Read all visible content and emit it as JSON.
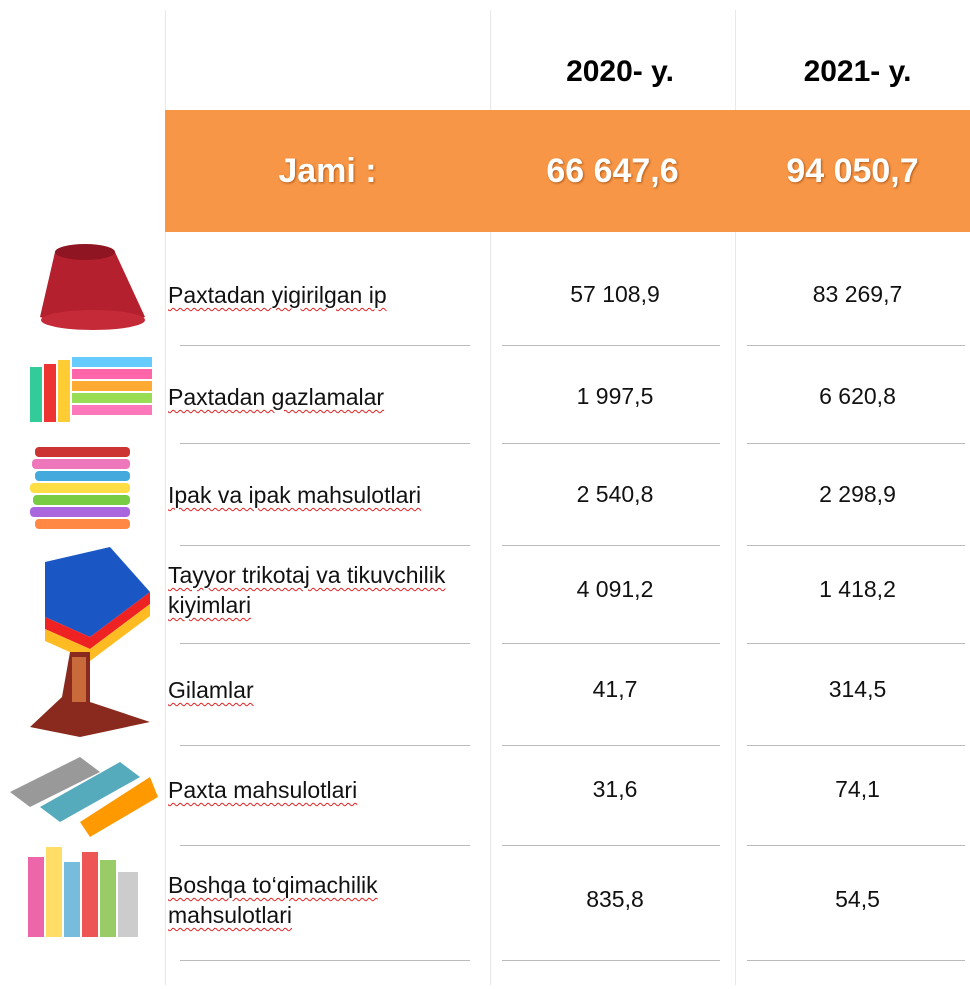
{
  "header": {
    "columns": [
      "2020- y.",
      "2021- y."
    ]
  },
  "total": {
    "label": "Jami :",
    "values": [
      "66 647,6",
      "94 050,7"
    ]
  },
  "rows": [
    {
      "label": "Paxtadan yigirilgan ip",
      "values": [
        "57 108,9",
        "83 269,7"
      ]
    },
    {
      "label": "Paxtadan gazlamalar",
      "values": [
        "1 997,5",
        "6 620,8"
      ]
    },
    {
      "label": "Ipak va ipak mahsulotlari",
      "values": [
        "2 540,8",
        "2 298,9"
      ]
    },
    {
      "label": "Tayyor trikotaj va tikuvchilik kiyimlari",
      "values": [
        "4 091,2",
        "1 418,2"
      ]
    },
    {
      "label": "Gilamlar",
      "values": [
        "41,7",
        "314,5"
      ]
    },
    {
      "label": "Paxta mahsulotlari",
      "values": [
        "31,6",
        "74,1"
      ]
    },
    {
      "label": "Boshqa to‘qimachilik mahsulotlari",
      "values": [
        "835,8",
        "54,5"
      ]
    }
  ]
}
